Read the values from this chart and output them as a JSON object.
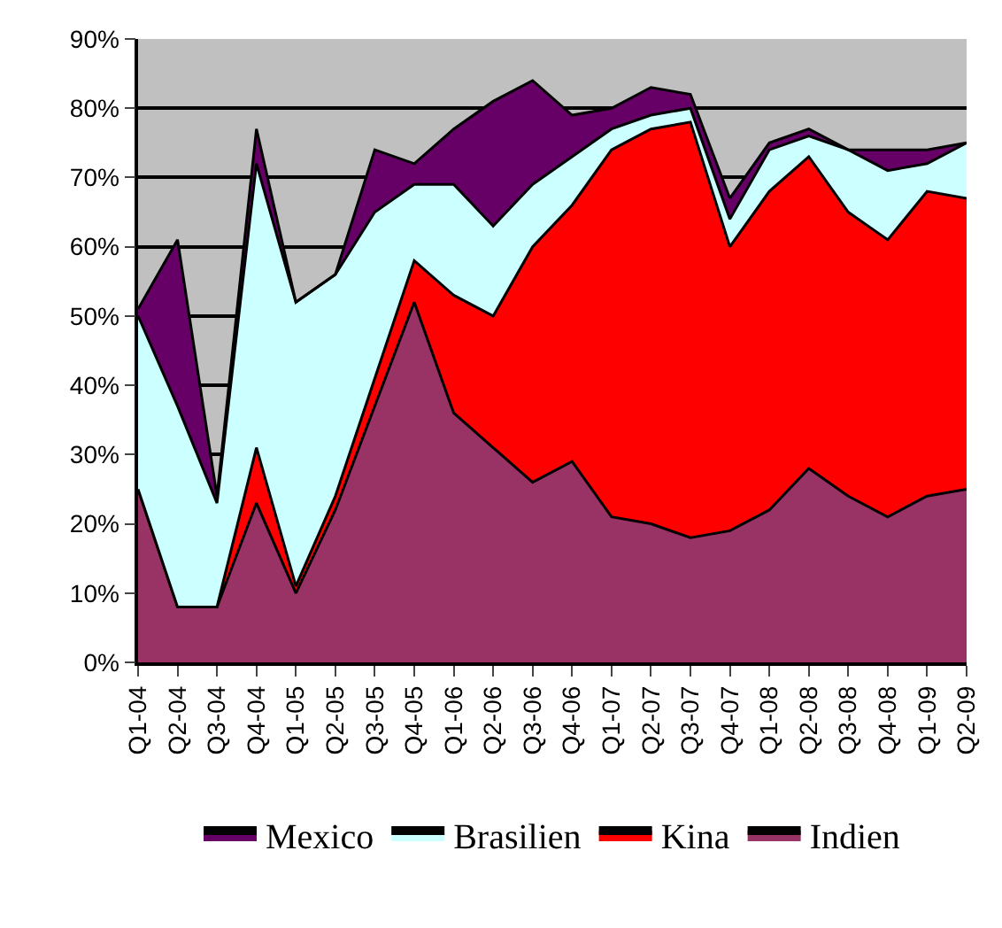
{
  "chart_data": {
    "type": "area",
    "stacked": true,
    "categories": [
      "Q1-04",
      "Q2-04",
      "Q3-04",
      "Q4-04",
      "Q1-05",
      "Q2-05",
      "Q3-05",
      "Q4-05",
      "Q1-06",
      "Q2-06",
      "Q3-06",
      "Q4-06",
      "Q1-07",
      "Q2-07",
      "Q3-07",
      "Q4-07",
      "Q1-08",
      "Q2-08",
      "Q3-08",
      "Q4-08",
      "Q1-09",
      "Q2-09"
    ],
    "series": [
      {
        "name": "Indien",
        "color": "#993366",
        "values": [
          25,
          8,
          8,
          23,
          10,
          22,
          37,
          52,
          36,
          31,
          26,
          29,
          21,
          20,
          18,
          19,
          22,
          28,
          24,
          21,
          24,
          25
        ]
      },
      {
        "name": "Kina",
        "color": "#ff0000",
        "values": [
          0,
          0,
          0,
          8,
          1,
          2,
          4,
          6,
          17,
          19,
          34,
          37,
          53,
          57,
          60,
          41,
          46,
          45,
          41,
          40,
          44,
          42
        ]
      },
      {
        "name": "Brasilien",
        "color": "#ccffff",
        "values": [
          25,
          29,
          15,
          41,
          41,
          32,
          24,
          11,
          16,
          13,
          9,
          7,
          3,
          2,
          2,
          4,
          6,
          3,
          9,
          10,
          4,
          8
        ]
      },
      {
        "name": "Mexico",
        "color": "#660066",
        "values": [
          1,
          24,
          1,
          5,
          0,
          0,
          9,
          3,
          8,
          18,
          15,
          6,
          3,
          4,
          2,
          3,
          1,
          1,
          0,
          3,
          2,
          0
        ]
      }
    ],
    "ylim": [
      0,
      90
    ],
    "yticks": [
      {
        "value": 0,
        "label": "0%"
      },
      {
        "value": 10,
        "label": "10%"
      },
      {
        "value": 20,
        "label": "20%"
      },
      {
        "value": 30,
        "label": "30%"
      },
      {
        "value": 40,
        "label": "40%"
      },
      {
        "value": 50,
        "label": "50%"
      },
      {
        "value": 60,
        "label": "60%"
      },
      {
        "value": 70,
        "label": "70%"
      },
      {
        "value": 80,
        "label": "80%"
      },
      {
        "value": 90,
        "label": "90%"
      }
    ],
    "grid": "y",
    "legend": "bottom"
  }
}
